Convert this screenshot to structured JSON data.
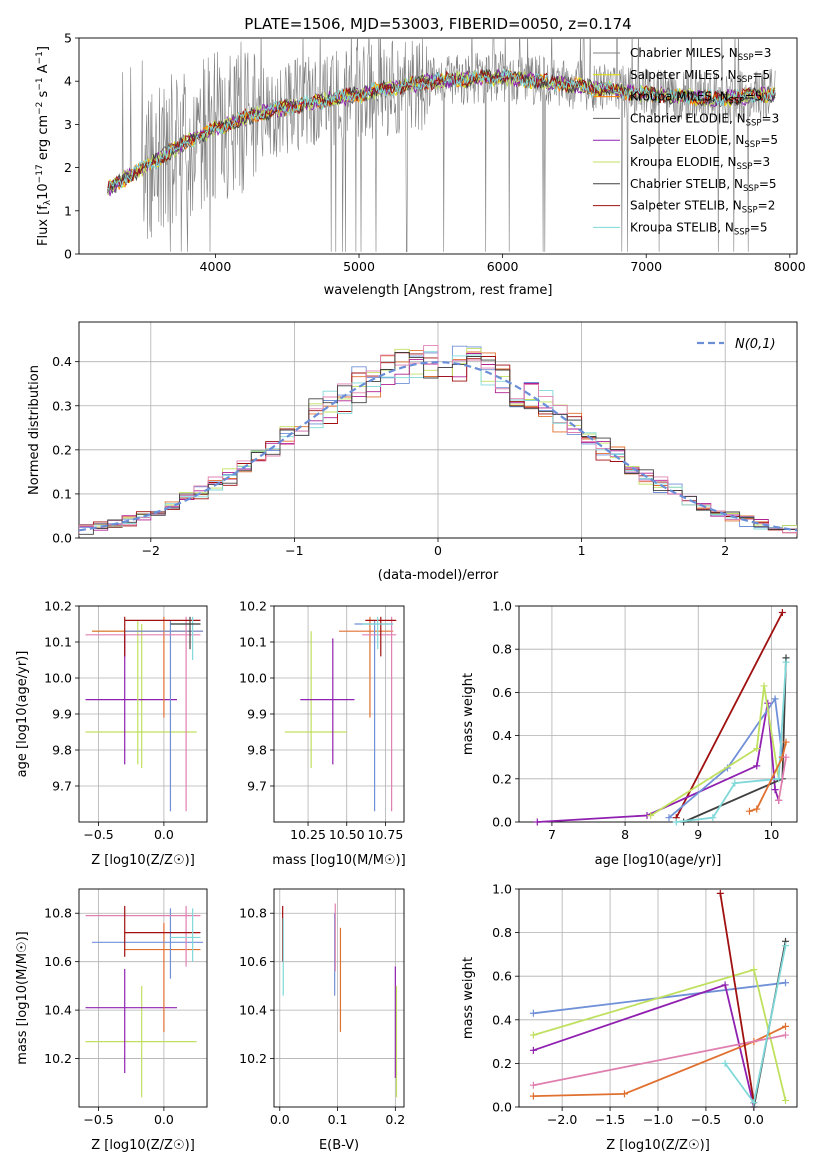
{
  "figure_title": "PLATE=1506, MJD=53003, FIBERID=0050, z=0.174",
  "colors": {
    "model_colors": [
      "#808080",
      "#e0e000",
      "#ff8000",
      "#606060",
      "#9020b0",
      "#c0e060",
      "#404040",
      "#a01010",
      "#80d8d8"
    ],
    "data_line": "#808080",
    "grid": "#b0b0b0",
    "normal_curve": "#6a8fd8",
    "hist_colors": [
      "#7090d8",
      "#e07030",
      "#c0e060",
      "#b02090",
      "#a01010",
      "#80d8d8",
      "#e080b0",
      "#404040"
    ]
  },
  "chart_data": [
    {
      "id": "spectrum",
      "type": "line",
      "xlabel": "wavelength [Angstrom, rest frame]",
      "ylabel_parts": [
        "Flux [f",
        "λ",
        "10",
        "−17",
        " erg cm",
        "−2",
        " s",
        "−1",
        " A",
        "−1",
        "]"
      ],
      "xlim": [
        3050,
        8050
      ],
      "ylim": [
        0,
        5
      ],
      "xticks": [
        4000,
        5000,
        6000,
        7000,
        8000
      ],
      "yticks": [
        0,
        1,
        2,
        3,
        4,
        5
      ],
      "grid": false,
      "legend_position": "top-right",
      "legend": [
        {
          "base": "Chabrier MILES, N",
          "sub": "SSP",
          "suffix": "=3"
        },
        {
          "base": "Salpeter MILES, N",
          "sub": "SSP",
          "suffix": "=5"
        },
        {
          "base": "Kroupa MILES, N",
          "sub": "SSP",
          "suffix": "=5"
        },
        {
          "base": "Chabrier ELODIE, N",
          "sub": "SSP",
          "suffix": "=3"
        },
        {
          "base": "Salpeter ELODIE, N",
          "sub": "SSP",
          "suffix": "=5"
        },
        {
          "base": "Kroupa ELODIE, N",
          "sub": "SSP",
          "suffix": "=3"
        },
        {
          "base": "Chabrier STELIB, N",
          "sub": "SSP",
          "suffix": "=5"
        },
        {
          "base": "Salpeter STELIB, N",
          "sub": "SSP",
          "suffix": "=2"
        },
        {
          "base": "Kroupa STELIB, N",
          "sub": "SSP",
          "suffix": "=5"
        }
      ],
      "continuum_points": {
        "x": [
          3250,
          3400,
          3600,
          3800,
          4000,
          4250,
          4500,
          5000,
          5500,
          6000,
          6500,
          7000,
          7500,
          7900
        ],
        "y": [
          1.5,
          1.8,
          2.2,
          2.6,
          2.9,
          3.2,
          3.4,
          3.7,
          4.0,
          4.1,
          3.9,
          3.7,
          3.6,
          3.7
        ]
      }
    },
    {
      "id": "residuals",
      "type": "bar",
      "xlabel": "(data-model)/error",
      "ylabel": "Normed distribution",
      "xlim": [
        -2.5,
        2.5
      ],
      "ylim": [
        0,
        0.49
      ],
      "xticks": [
        -2,
        -1,
        0,
        1,
        2
      ],
      "xtick_labels": [
        "−2",
        "−1",
        "0",
        "1",
        "2"
      ],
      "yticks": [
        0.0,
        0.1,
        0.2,
        0.3,
        0.4
      ],
      "ytick_labels": [
        "0.0",
        "0.1",
        "0.2",
        "0.3",
        "0.4"
      ],
      "grid": true,
      "legend_position": "top-right",
      "legend_label": "N(0,1)",
      "bin_width": 0.1
    },
    {
      "id": "z-age",
      "type": "scatter",
      "xlabel": "Z [log10(Z/Z☉)]",
      "ylabel": "age [log10(age/yr)]",
      "xlim": [
        -0.65,
        0.33
      ],
      "ylim": [
        9.6,
        10.2
      ],
      "xticks": [
        -0.5,
        0.0
      ],
      "xtick_labels": [
        "−0.5",
        "0.0"
      ],
      "yticks": [
        9.7,
        9.8,
        9.9,
        10.0,
        10.1,
        10.2
      ],
      "ytick_labels": [
        "9.7",
        "9.8",
        "9.9",
        "10.0",
        "10.1",
        "10.2"
      ],
      "grid": true,
      "points": [
        {
          "x": -0.17,
          "y": 9.85,
          "xlo": -0.6,
          "xhi": 0.25,
          "ylo": 9.75,
          "yhi": 10.15,
          "c": "#c0e060"
        },
        {
          "x": -0.3,
          "y": 9.94,
          "xlo": -0.6,
          "xhi": 0.1,
          "ylo": 9.76,
          "yhi": 10.12,
          "c": "#9020b0"
        },
        {
          "x": -0.2,
          "y": 10.13,
          "xlo": -0.55,
          "xhi": 0.2,
          "ylo": 9.76,
          "yhi": 10.16,
          "c": "#c0e060"
        },
        {
          "x": 0.0,
          "y": 10.13,
          "xlo": -0.55,
          "xhi": 0.3,
          "ylo": 9.89,
          "yhi": 10.17,
          "c": "#e07030"
        },
        {
          "x": 0.05,
          "y": 10.13,
          "xlo": -0.3,
          "xhi": 0.3,
          "ylo": 9.63,
          "yhi": 10.16,
          "c": "#7090d8"
        },
        {
          "x": 0.17,
          "y": 10.12,
          "xlo": -0.6,
          "xhi": 0.28,
          "ylo": 9.63,
          "yhi": 10.17,
          "c": "#e080b0"
        },
        {
          "x": -0.3,
          "y": 10.16,
          "xlo": -0.3,
          "xhi": 0.28,
          "ylo": 10.06,
          "yhi": 10.17,
          "c": "#a01010"
        },
        {
          "x": 0.22,
          "y": 10.15,
          "xlo": 0.05,
          "xhi": 0.28,
          "ylo": 10.05,
          "yhi": 10.17,
          "c": "#80d8d8"
        },
        {
          "x": 0.2,
          "y": 10.15,
          "xlo": 0.05,
          "xhi": 0.28,
          "ylo": 10.08,
          "yhi": 10.17,
          "c": "#404040"
        }
      ]
    },
    {
      "id": "mass-age",
      "type": "scatter",
      "xlabel": "mass [log10(M/M☉)]",
      "ylabel": "",
      "xlim": [
        10.03,
        10.87
      ],
      "ylim": [
        9.6,
        10.2
      ],
      "xticks": [
        10.25,
        10.5,
        10.75
      ],
      "xtick_labels": [
        "10.25",
        "10.50",
        "10.75"
      ],
      "yticks": [
        9.7,
        9.8,
        9.9,
        10.0,
        10.1,
        10.2
      ],
      "ytick_labels": [
        "9.7",
        "9.8",
        "9.9",
        "10.0",
        "10.1",
        "10.2"
      ],
      "grid": true,
      "points": [
        {
          "x": 10.27,
          "y": 9.85,
          "xlo": 10.1,
          "xhi": 10.5,
          "ylo": 9.75,
          "yhi": 10.13,
          "c": "#c0e060"
        },
        {
          "x": 10.41,
          "y": 9.94,
          "xlo": 10.2,
          "xhi": 10.55,
          "ylo": 9.76,
          "yhi": 10.11,
          "c": "#9020b0"
        },
        {
          "x": 10.65,
          "y": 10.13,
          "xlo": 10.45,
          "xhi": 10.8,
          "ylo": 9.89,
          "yhi": 10.17,
          "c": "#e07030"
        },
        {
          "x": 10.68,
          "y": 10.15,
          "xlo": 10.55,
          "xhi": 10.8,
          "ylo": 9.63,
          "yhi": 10.16,
          "c": "#7090d8"
        },
        {
          "x": 10.79,
          "y": 10.12,
          "xlo": 10.6,
          "xhi": 10.82,
          "ylo": 9.63,
          "yhi": 10.17,
          "c": "#e080b0"
        },
        {
          "x": 10.72,
          "y": 10.16,
          "xlo": 10.62,
          "xhi": 10.82,
          "ylo": 10.06,
          "yhi": 10.17,
          "c": "#a01010"
        },
        {
          "x": 10.7,
          "y": 10.15,
          "xlo": 10.6,
          "xhi": 10.8,
          "ylo": 10.08,
          "yhi": 10.17,
          "c": "#80d8d8"
        }
      ]
    },
    {
      "id": "age-weight",
      "type": "line",
      "xlabel": "age [log10(age/yr)]",
      "ylabel": "mass weight",
      "xlim": [
        6.55,
        10.35
      ],
      "ylim": [
        0,
        1
      ],
      "xticks": [
        7,
        8,
        9,
        10
      ],
      "xtick_labels": [
        "7",
        "8",
        "9",
        "10"
      ],
      "yticks": [
        0.0,
        0.2,
        0.4,
        0.6,
        0.8,
        1.0
      ],
      "ytick_labels": [
        "0.0",
        "0.2",
        "0.4",
        "0.6",
        "0.8",
        "1.0"
      ],
      "grid": true,
      "series": [
        {
          "c": "#a01010",
          "x": [
            8.7,
            10.15
          ],
          "y": [
            0.02,
            0.97
          ]
        },
        {
          "c": "#9020b0",
          "x": [
            6.8,
            8.3,
            9.8,
            9.95,
            10.05,
            10.1
          ],
          "y": [
            0.0,
            0.03,
            0.26,
            0.55,
            0.15,
            0.1
          ]
        },
        {
          "c": "#7090d8",
          "x": [
            8.6,
            9.4,
            10.05,
            10.15
          ],
          "y": [
            0.02,
            0.25,
            0.57,
            0.3
          ]
        },
        {
          "c": "#c0e060",
          "x": [
            8.35,
            9.8,
            9.9,
            10.1
          ],
          "y": [
            0.03,
            0.34,
            0.63,
            0.2
          ]
        },
        {
          "c": "#404040",
          "x": [
            8.8,
            10.15,
            10.2
          ],
          "y": [
            0.0,
            0.2,
            0.76
          ]
        },
        {
          "c": "#80d8d8",
          "x": [
            8.7,
            9.2,
            9.5,
            10.1,
            10.2
          ],
          "y": [
            0.0,
            0.02,
            0.18,
            0.2,
            0.74
          ]
        },
        {
          "c": "#e07030",
          "x": [
            9.7,
            9.8,
            10.15,
            10.2
          ],
          "y": [
            0.05,
            0.06,
            0.3,
            0.37
          ]
        },
        {
          "c": "#e080b0",
          "x": [
            10.1,
            10.2
          ],
          "y": [
            0.1,
            0.3
          ]
        }
      ]
    },
    {
      "id": "z-mass",
      "type": "scatter",
      "xlabel": "Z [log10(Z/Z☉)]",
      "ylabel": "mass [log10(M/M☉)]",
      "xlim": [
        -0.65,
        0.33
      ],
      "ylim": [
        10.0,
        10.9
      ],
      "xticks": [
        -0.5,
        0.0
      ],
      "xtick_labels": [
        "−0.5",
        "0.0"
      ],
      "yticks": [
        10.2,
        10.4,
        10.6,
        10.8
      ],
      "ytick_labels": [
        "10.2",
        "10.4",
        "10.6",
        "10.8"
      ],
      "grid": true,
      "points": [
        {
          "x": -0.17,
          "y": 10.27,
          "xlo": -0.6,
          "xhi": 0.25,
          "ylo": 10.04,
          "yhi": 10.5,
          "c": "#c0e060"
        },
        {
          "x": -0.3,
          "y": 10.41,
          "xlo": -0.6,
          "xhi": 0.1,
          "ylo": 10.14,
          "yhi": 10.57,
          "c": "#9020b0"
        },
        {
          "x": 0.0,
          "y": 10.65,
          "xlo": -0.3,
          "xhi": 0.28,
          "ylo": 10.31,
          "yhi": 10.76,
          "c": "#e07030"
        },
        {
          "x": 0.05,
          "y": 10.68,
          "xlo": -0.55,
          "xhi": 0.3,
          "ylo": 10.53,
          "yhi": 10.82,
          "c": "#7090d8"
        },
        {
          "x": 0.17,
          "y": 10.79,
          "xlo": -0.6,
          "xhi": 0.28,
          "ylo": 10.58,
          "yhi": 10.83,
          "c": "#e080b0"
        },
        {
          "x": -0.3,
          "y": 10.72,
          "xlo": -0.3,
          "xhi": 0.28,
          "ylo": 10.62,
          "yhi": 10.83,
          "c": "#a01010"
        },
        {
          "x": 0.22,
          "y": 10.7,
          "xlo": 0.05,
          "xhi": 0.28,
          "ylo": 10.6,
          "yhi": 10.82,
          "c": "#80d8d8"
        }
      ]
    },
    {
      "id": "ebv-mass",
      "type": "scatter",
      "xlabel": "E(B-V)",
      "ylabel": "",
      "xlim": [
        -0.01,
        0.215
      ],
      "ylim": [
        10.0,
        10.9
      ],
      "xticks": [
        0.0,
        0.1,
        0.2
      ],
      "xtick_labels": [
        "0.0",
        "0.1",
        "0.2"
      ],
      "yticks": [
        10.2,
        10.4,
        10.6,
        10.8
      ],
      "ytick_labels": [
        "10.2",
        "10.4",
        "10.6",
        "10.8"
      ],
      "grid": true,
      "points": [
        {
          "x": 0.005,
          "y": 10.72,
          "ylo": 10.6,
          "yhi": 10.83,
          "c": "#a01010"
        },
        {
          "x": 0.006,
          "y": 10.6,
          "ylo": 10.46,
          "yhi": 10.78,
          "c": "#80d8d8"
        },
        {
          "x": 0.095,
          "y": 10.68,
          "ylo": 10.46,
          "yhi": 10.8,
          "c": "#7090d8"
        },
        {
          "x": 0.096,
          "y": 10.79,
          "ylo": 10.56,
          "yhi": 10.84,
          "c": "#e080b0"
        },
        {
          "x": 0.105,
          "y": 10.65,
          "ylo": 10.31,
          "yhi": 10.74,
          "c": "#e07030"
        },
        {
          "x": 0.2,
          "y": 10.41,
          "ylo": 10.12,
          "yhi": 10.58,
          "c": "#9020b0"
        },
        {
          "x": 0.202,
          "y": 10.27,
          "ylo": 10.04,
          "yhi": 10.5,
          "c": "#c0e060"
        }
      ]
    },
    {
      "id": "z-weight",
      "type": "line",
      "xlabel": "Z [log10(Z/Z☉)]",
      "ylabel": "mass weight",
      "xlim": [
        -2.45,
        0.45
      ],
      "ylim": [
        0,
        1
      ],
      "xticks": [
        -2.0,
        -1.5,
        -1.0,
        -0.5,
        0.0
      ],
      "xtick_labels": [
        "−2.0",
        "−1.5",
        "−1.0",
        "−0.5",
        "0.0"
      ],
      "yticks": [
        0.0,
        0.2,
        0.4,
        0.6,
        0.8,
        1.0
      ],
      "ytick_labels": [
        "0.0",
        "0.2",
        "0.4",
        "0.6",
        "0.8",
        "1.0"
      ],
      "grid": true,
      "series": [
        {
          "c": "#7090d8",
          "x": [
            -2.3,
            0.33
          ],
          "y": [
            0.43,
            0.57
          ]
        },
        {
          "c": "#c0e060",
          "x": [
            -2.3,
            0.0,
            0.33
          ],
          "y": [
            0.33,
            0.63,
            0.03
          ]
        },
        {
          "c": "#9020b0",
          "x": [
            -2.3,
            -0.3,
            0.0
          ],
          "y": [
            0.26,
            0.56,
            0.0
          ]
        },
        {
          "c": "#e07030",
          "x": [
            -2.3,
            -1.35,
            0.0,
            0.33
          ],
          "y": [
            0.05,
            0.06,
            0.3,
            0.37
          ]
        },
        {
          "c": "#e080b0",
          "x": [
            -2.3,
            0.33
          ],
          "y": [
            0.1,
            0.33
          ]
        },
        {
          "c": "#a01010",
          "x": [
            -0.35,
            0.0
          ],
          "y": [
            0.98,
            0.02
          ]
        },
        {
          "c": "#404040",
          "x": [
            0.0,
            0.33
          ],
          "y": [
            0.0,
            0.76
          ]
        },
        {
          "c": "#80d8d8",
          "x": [
            -0.3,
            0.0,
            0.33
          ],
          "y": [
            0.2,
            0.02,
            0.74
          ]
        }
      ]
    }
  ]
}
